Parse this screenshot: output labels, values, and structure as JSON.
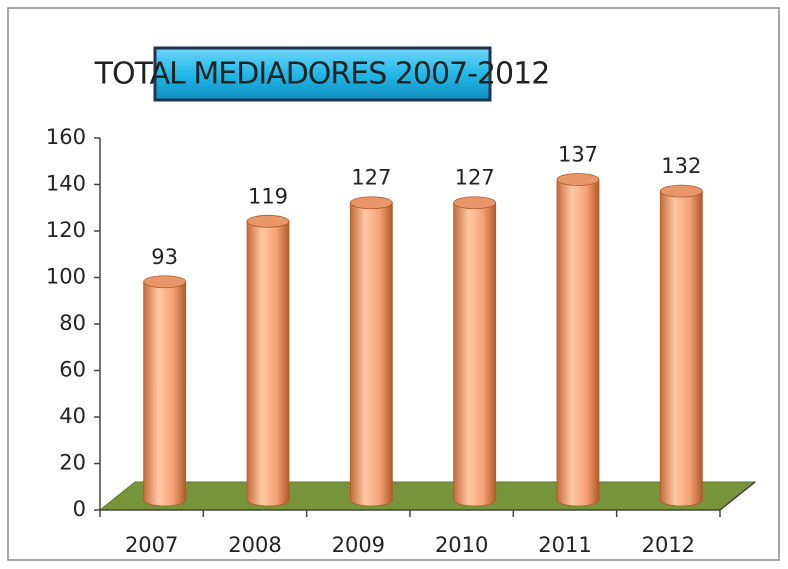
{
  "chart_data": {
    "type": "bar",
    "title": "TOTAL MEDIADORES 2007-2012",
    "categories": [
      "2007",
      "2008",
      "2009",
      "2010",
      "2011",
      "2012"
    ],
    "values": [
      93,
      119,
      127,
      127,
      137,
      132
    ],
    "color": "#f4b183",
    "floor_color": "#77933c",
    "title_bg": "#22b8e8",
    "ylim": [
      0,
      160
    ],
    "yticks": [
      0,
      20,
      40,
      60,
      80,
      100,
      120,
      140,
      160
    ]
  }
}
